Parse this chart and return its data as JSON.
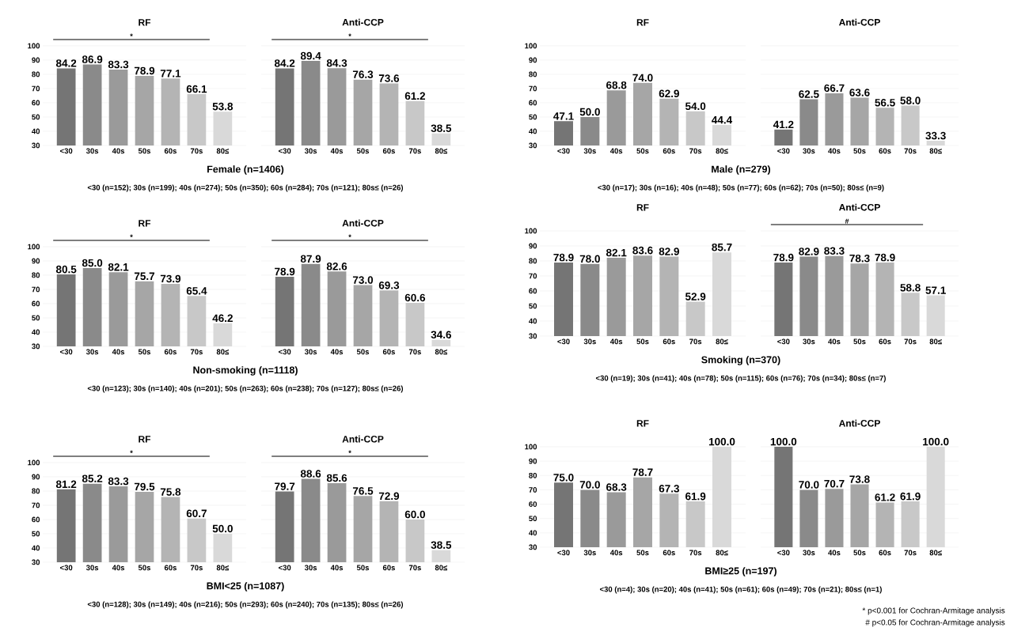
{
  "chart_data": [
    {
      "type": "bar",
      "title": "RF",
      "xlabel": "Female (n=1406)",
      "subtitle": "<30 (n=152); 30s (n=199); 40s (n=274); 50s (n=350); 60s (n=284); 70s (n=121); 80s≤ (n=26)",
      "annotations": [
        "*"
      ],
      "categories": [
        "<30",
        "30s",
        "40s",
        "50s",
        "60s",
        "70s",
        "80≤"
      ],
      "values": [
        84.2,
        86.9,
        83.3,
        78.9,
        77.1,
        66.1,
        53.8
      ],
      "value_labels": [
        "84.2",
        "86.9",
        "83.3",
        "78.9",
        "77.1",
        "66.1",
        "53.8"
      ],
      "colors": [
        "#757575",
        "#8a8a8a",
        "#9a9a9a",
        "#a6a6a6",
        "#b4b4b4",
        "#c8c8c8",
        "#d9d9d9"
      ],
      "ylim": [
        30,
        100
      ],
      "yticks": [
        30,
        40,
        50,
        60,
        70,
        80,
        90,
        100
      ],
      "grid": "y"
    },
    {
      "type": "bar",
      "title": "Anti-CCP",
      "annotations": [
        "*"
      ],
      "categories": [
        "<30",
        "30s",
        "40s",
        "50s",
        "60s",
        "70s",
        "80≤"
      ],
      "values": [
        84.2,
        89.4,
        84.3,
        76.3,
        73.6,
        61.2,
        38.5
      ],
      "value_labels": [
        "84.2",
        "89.4",
        "84.3",
        "76.3",
        "73.6",
        "61.2",
        "38.5"
      ],
      "colors": [
        "#757575",
        "#8a8a8a",
        "#9a9a9a",
        "#a6a6a6",
        "#b4b4b4",
        "#c8c8c8",
        "#d9d9d9"
      ],
      "ylim": [
        30,
        100
      ],
      "yticks": [
        30,
        40,
        50,
        60,
        70,
        80,
        90,
        100
      ],
      "grid": "y",
      "tick_labels": "x"
    },
    {
      "type": "bar",
      "title": "RF",
      "xlabel": "Male (n=279)",
      "subtitle": "<30 (n=17); 30s (n=16); 40s (n=48); 50s (n=77); 60s (n=62); 70s (n=50); 80s≤ (n=9)",
      "categories": [
        "<30",
        "30s",
        "40s",
        "50s",
        "60s",
        "70s",
        "80≤"
      ],
      "values": [
        47.1,
        50.0,
        68.8,
        74.0,
        62.9,
        54.0,
        44.4
      ],
      "value_labels": [
        "47.1",
        "50.0",
        "68.8",
        "74.0",
        "62.9",
        "54.0",
        "44.4"
      ],
      "colors": [
        "#757575",
        "#8a8a8a",
        "#9a9a9a",
        "#a6a6a6",
        "#b4b4b4",
        "#c8c8c8",
        "#d9d9d9"
      ],
      "ylim": [
        30,
        100
      ],
      "yticks": [
        30,
        40,
        50,
        60,
        70,
        80,
        90,
        100
      ],
      "grid": "y"
    },
    {
      "type": "bar",
      "title": "Anti-CCP",
      "categories": [
        "<30",
        "30s",
        "40s",
        "50s",
        "60s",
        "70s",
        "80≤"
      ],
      "values": [
        41.2,
        62.5,
        66.7,
        63.6,
        56.5,
        58.0,
        33.3
      ],
      "value_labels": [
        "41.2",
        "62.5",
        "66.7",
        "63.6",
        "56.5",
        "58.0",
        "33.3"
      ],
      "colors": [
        "#757575",
        "#8a8a8a",
        "#9a9a9a",
        "#a6a6a6",
        "#b4b4b4",
        "#c8c8c8",
        "#d9d9d9"
      ],
      "ylim": [
        30,
        100
      ],
      "yticks": [
        30,
        40,
        50,
        60,
        70,
        80,
        90,
        100
      ],
      "grid": "y",
      "tick_labels": "x"
    },
    {
      "type": "bar",
      "title": "RF",
      "xlabel": "Non-smoking (n=1118)",
      "subtitle": "<30 (n=123); 30s (n=140); 40s (n=201); 50s (n=263); 60s (n=238); 70s (n=127); 80s≤ (n=26)",
      "annotations": [
        "*"
      ],
      "categories": [
        "<30",
        "30s",
        "40s",
        "50s",
        "60s",
        "70s",
        "80≤"
      ],
      "values": [
        80.5,
        85.0,
        82.1,
        75.7,
        73.9,
        65.4,
        46.2
      ],
      "value_labels": [
        "80.5",
        "85.0",
        "82.1",
        "75.7",
        "73.9",
        "65.4",
        "46.2"
      ],
      "colors": [
        "#757575",
        "#8a8a8a",
        "#9a9a9a",
        "#a6a6a6",
        "#b4b4b4",
        "#c8c8c8",
        "#d9d9d9"
      ],
      "ylim": [
        30,
        100
      ],
      "yticks": [
        30,
        40,
        50,
        60,
        70,
        80,
        90,
        100
      ],
      "grid": "y"
    },
    {
      "type": "bar",
      "title": "Anti-CCP",
      "annotations": [
        "*"
      ],
      "categories": [
        "<30",
        "30s",
        "40s",
        "50s",
        "60s",
        "70s",
        "80≤"
      ],
      "values": [
        78.9,
        87.9,
        82.6,
        73.0,
        69.3,
        60.6,
        34.6
      ],
      "value_labels": [
        "78.9",
        "87.9",
        "82.6",
        "73.0",
        "69.3",
        "60.6",
        "34.6"
      ],
      "colors": [
        "#757575",
        "#8a8a8a",
        "#9a9a9a",
        "#a6a6a6",
        "#b4b4b4",
        "#c8c8c8",
        "#d9d9d9"
      ],
      "ylim": [
        30,
        100
      ],
      "yticks": [
        30,
        40,
        50,
        60,
        70,
        80,
        90,
        100
      ],
      "grid": "y",
      "tick_labels": "x"
    },
    {
      "type": "bar",
      "title": "RF",
      "xlabel": "Smoking (n=370)",
      "subtitle": "<30 (n=19); 30s (n=41); 40s (n=78); 50s (n=115); 60s (n=76); 70s (n=34); 80s≤ (n=7)",
      "categories": [
        "<30",
        "30s",
        "40s",
        "50s",
        "60s",
        "70s",
        "80≤"
      ],
      "values": [
        78.9,
        78.0,
        82.1,
        83.6,
        82.9,
        52.9,
        85.7
      ],
      "value_labels": [
        "78.9",
        "78.0",
        "82.1",
        "83.6",
        "82.9",
        "52.9",
        "85.7"
      ],
      "colors": [
        "#757575",
        "#8a8a8a",
        "#9a9a9a",
        "#a6a6a6",
        "#b4b4b4",
        "#c8c8c8",
        "#d9d9d9"
      ],
      "ylim": [
        30,
        100
      ],
      "yticks": [
        30,
        40,
        50,
        60,
        70,
        80,
        90,
        100
      ],
      "grid": "y"
    },
    {
      "type": "bar",
      "title": "Anti-CCP",
      "annotations": [
        "#"
      ],
      "categories": [
        "<30",
        "30s",
        "40s",
        "50s",
        "60s",
        "70s",
        "80≤"
      ],
      "values": [
        78.9,
        82.9,
        83.3,
        78.3,
        78.9,
        58.8,
        57.1
      ],
      "value_labels": [
        "78.9",
        "82.9",
        "83.3",
        "78.3",
        "78.9",
        "58.8",
        "57.1"
      ],
      "colors": [
        "#757575",
        "#8a8a8a",
        "#9a9a9a",
        "#a6a6a6",
        "#b4b4b4",
        "#c8c8c8",
        "#d9d9d9"
      ],
      "ylim": [
        30,
        100
      ],
      "yticks": [
        30,
        40,
        50,
        60,
        70,
        80,
        90,
        100
      ],
      "grid": "y",
      "tick_labels": "x"
    },
    {
      "type": "bar",
      "title": "RF",
      "xlabel": "BMI<25 (n=1087)",
      "subtitle": "<30 (n=128); 30s (n=149); 40s (n=216); 50s (n=293); 60s (n=240); 70s (n=135); 80s≤ (n=26)",
      "annotations": [
        "*"
      ],
      "categories": [
        "<30",
        "30s",
        "40s",
        "50s",
        "60s",
        "70s",
        "80≤"
      ],
      "values": [
        81.2,
        85.2,
        83.3,
        79.5,
        75.8,
        60.7,
        50.0
      ],
      "value_labels": [
        "81.2",
        "85.2",
        "83.3",
        "79.5",
        "75.8",
        "60.7",
        "50.0"
      ],
      "colors": [
        "#757575",
        "#8a8a8a",
        "#9a9a9a",
        "#a6a6a6",
        "#b4b4b4",
        "#c8c8c8",
        "#d9d9d9"
      ],
      "ylim": [
        30,
        100
      ],
      "yticks": [
        30,
        40,
        50,
        60,
        70,
        80,
        90,
        100
      ],
      "grid": "y"
    },
    {
      "type": "bar",
      "title": "Anti-CCP",
      "annotations": [
        "*"
      ],
      "categories": [
        "<30",
        "30s",
        "40s",
        "50s",
        "60s",
        "70s",
        "80≤"
      ],
      "values": [
        79.7,
        88.6,
        85.6,
        76.5,
        72.9,
        60.0,
        38.5
      ],
      "value_labels": [
        "79.7",
        "88.6",
        "85.6",
        "76.5",
        "72.9",
        "60.0",
        "38.5"
      ],
      "colors": [
        "#757575",
        "#8a8a8a",
        "#9a9a9a",
        "#a6a6a6",
        "#b4b4b4",
        "#c8c8c8",
        "#d9d9d9"
      ],
      "ylim": [
        30,
        100
      ],
      "yticks": [
        30,
        40,
        50,
        60,
        70,
        80,
        90,
        100
      ],
      "grid": "y",
      "tick_labels": "x"
    },
    {
      "type": "bar",
      "title": "RF",
      "xlabel": "BMI≥25 (n=197)",
      "subtitle": "<30 (n=4); 30s (n=20); 40s (n=41); 50s (n=61); 60s (n=49); 70s (n=21); 80s≤ (n=1)",
      "categories": [
        "<30",
        "30s",
        "40s",
        "50s",
        "60s",
        "70s",
        "80≤"
      ],
      "values": [
        75.0,
        70.0,
        68.3,
        78.7,
        67.3,
        61.9,
        100.0
      ],
      "value_labels": [
        "75.0",
        "70.0",
        "68.3",
        "78.7",
        "67.3",
        "61.9",
        "100.0"
      ],
      "colors": [
        "#757575",
        "#8a8a8a",
        "#9a9a9a",
        "#a6a6a6",
        "#b4b4b4",
        "#c8c8c8",
        "#d9d9d9"
      ],
      "ylim": [
        30,
        100
      ],
      "yticks": [
        30,
        40,
        50,
        60,
        70,
        80,
        90,
        100
      ],
      "grid": "y"
    },
    {
      "type": "bar",
      "title": "Anti-CCP",
      "annotations": [
        "* p<0.001 for Cochran-Armitage analysis",
        "# p<0.05 for Cochran-Armitage analysis"
      ],
      "categories": [
        "<30",
        "30s",
        "40s",
        "50s",
        "60s",
        "70s",
        "80≤"
      ],
      "values": [
        100.0,
        70.0,
        70.7,
        73.8,
        61.2,
        61.9,
        100.0
      ],
      "value_labels": [
        "100.0",
        "70.0",
        "70.7",
        "73.8",
        "61.2",
        "61.9",
        "100.0"
      ],
      "colors": [
        "#757575",
        "#8a8a8a",
        "#9a9a9a",
        "#a6a6a6",
        "#b4b4b4",
        "#c8c8c8",
        "#d9d9d9"
      ],
      "ylim": [
        30,
        100
      ],
      "yticks": [
        30,
        40,
        50,
        60,
        70,
        80,
        90,
        100
      ],
      "grid": "y",
      "tick_labels": "x"
    }
  ]
}
